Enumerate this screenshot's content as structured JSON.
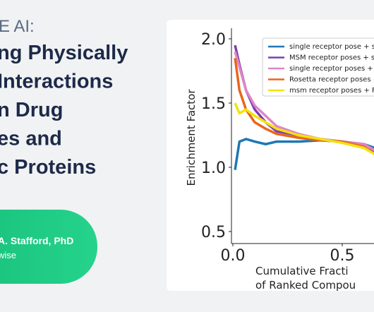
{
  "header": {
    "kicker": "E AI:",
    "title_lines": [
      "ng Physically",
      " Interactions",
      "n Drug",
      "es and",
      "c Proteins"
    ]
  },
  "speaker": {
    "name": "A. Stafford, PhD",
    "org": "wise"
  },
  "chart_data": {
    "type": "line",
    "ylabel": "Enrichment Factor",
    "xlabel_lines": [
      "Cumulative Fracti",
      "of Ranked Compou"
    ],
    "x": [
      0.01,
      0.03,
      0.06,
      0.1,
      0.15,
      0.2,
      0.3,
      0.4,
      0.5,
      0.6,
      0.65
    ],
    "series": [
      {
        "name": "single receptor pose + s",
        "color": "#1f77b4",
        "values": [
          0.98,
          1.2,
          1.22,
          1.2,
          1.18,
          1.2,
          1.2,
          1.21,
          1.2,
          1.18,
          1.15
        ]
      },
      {
        "name": "MSM receptor poses + s",
        "color": "#7b3fb5",
        "values": [
          1.95,
          1.8,
          1.6,
          1.45,
          1.35,
          1.28,
          1.25,
          1.22,
          1.2,
          1.15,
          1.12
        ]
      },
      {
        "name": "single receptor poses + F",
        "color": "#df86c6",
        "values": [
          1.9,
          1.78,
          1.6,
          1.48,
          1.4,
          1.32,
          1.26,
          1.22,
          1.2,
          1.18,
          1.13
        ]
      },
      {
        "name": "Rosetta receptor poses +",
        "color": "#e8661c",
        "values": [
          1.85,
          1.6,
          1.45,
          1.35,
          1.3,
          1.26,
          1.23,
          1.21,
          1.2,
          1.16,
          1.1
        ]
      },
      {
        "name": "msm receptor poses + F",
        "color": "#f2e30c",
        "values": [
          1.5,
          1.42,
          1.45,
          1.4,
          1.35,
          1.3,
          1.25,
          1.22,
          1.19,
          1.15,
          1.1
        ]
      }
    ],
    "xlim": [
      0,
      1
    ],
    "ylim": [
      0.5,
      2
    ],
    "xticks": [
      {
        "value": 0,
        "label": "0.0"
      },
      0.5
    ],
    "yticks": [
      0.5,
      {
        "value": 1,
        "label": "1.0"
      },
      1.5,
      {
        "value": 2,
        "label": "2.0"
      }
    ]
  }
}
